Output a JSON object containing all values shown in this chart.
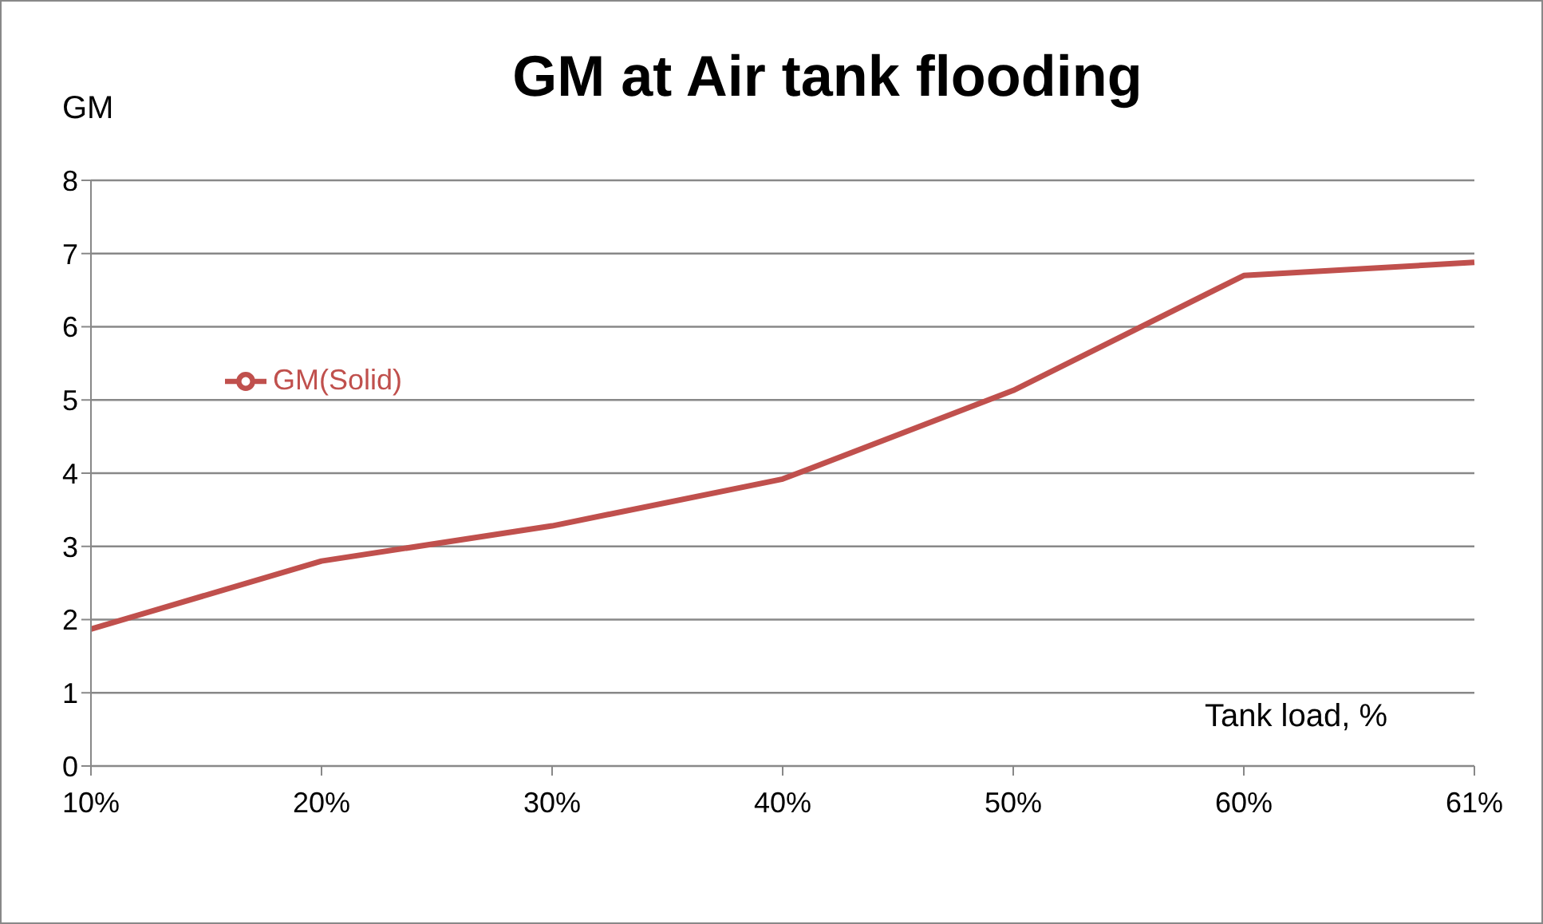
{
  "chart_data": {
    "type": "line",
    "title": "GM at Air tank flooding",
    "ylabel": "GM",
    "xlabel": "Tank load, %",
    "categories": [
      "10%",
      "20%",
      "30%",
      "40%",
      "50%",
      "60%",
      "61%"
    ],
    "series": [
      {
        "name": "GM(Solid)",
        "color": "#c0504d",
        "values": [
          1.87,
          2.8,
          3.28,
          3.92,
          5.13,
          6.7,
          6.88
        ]
      }
    ],
    "ylim": [
      0,
      8
    ],
    "yticks": [
      0,
      1,
      2,
      3,
      4,
      5,
      6,
      7,
      8
    ],
    "grid": "y",
    "legend": "left",
    "marker": "none",
    "line_style": "solid"
  }
}
